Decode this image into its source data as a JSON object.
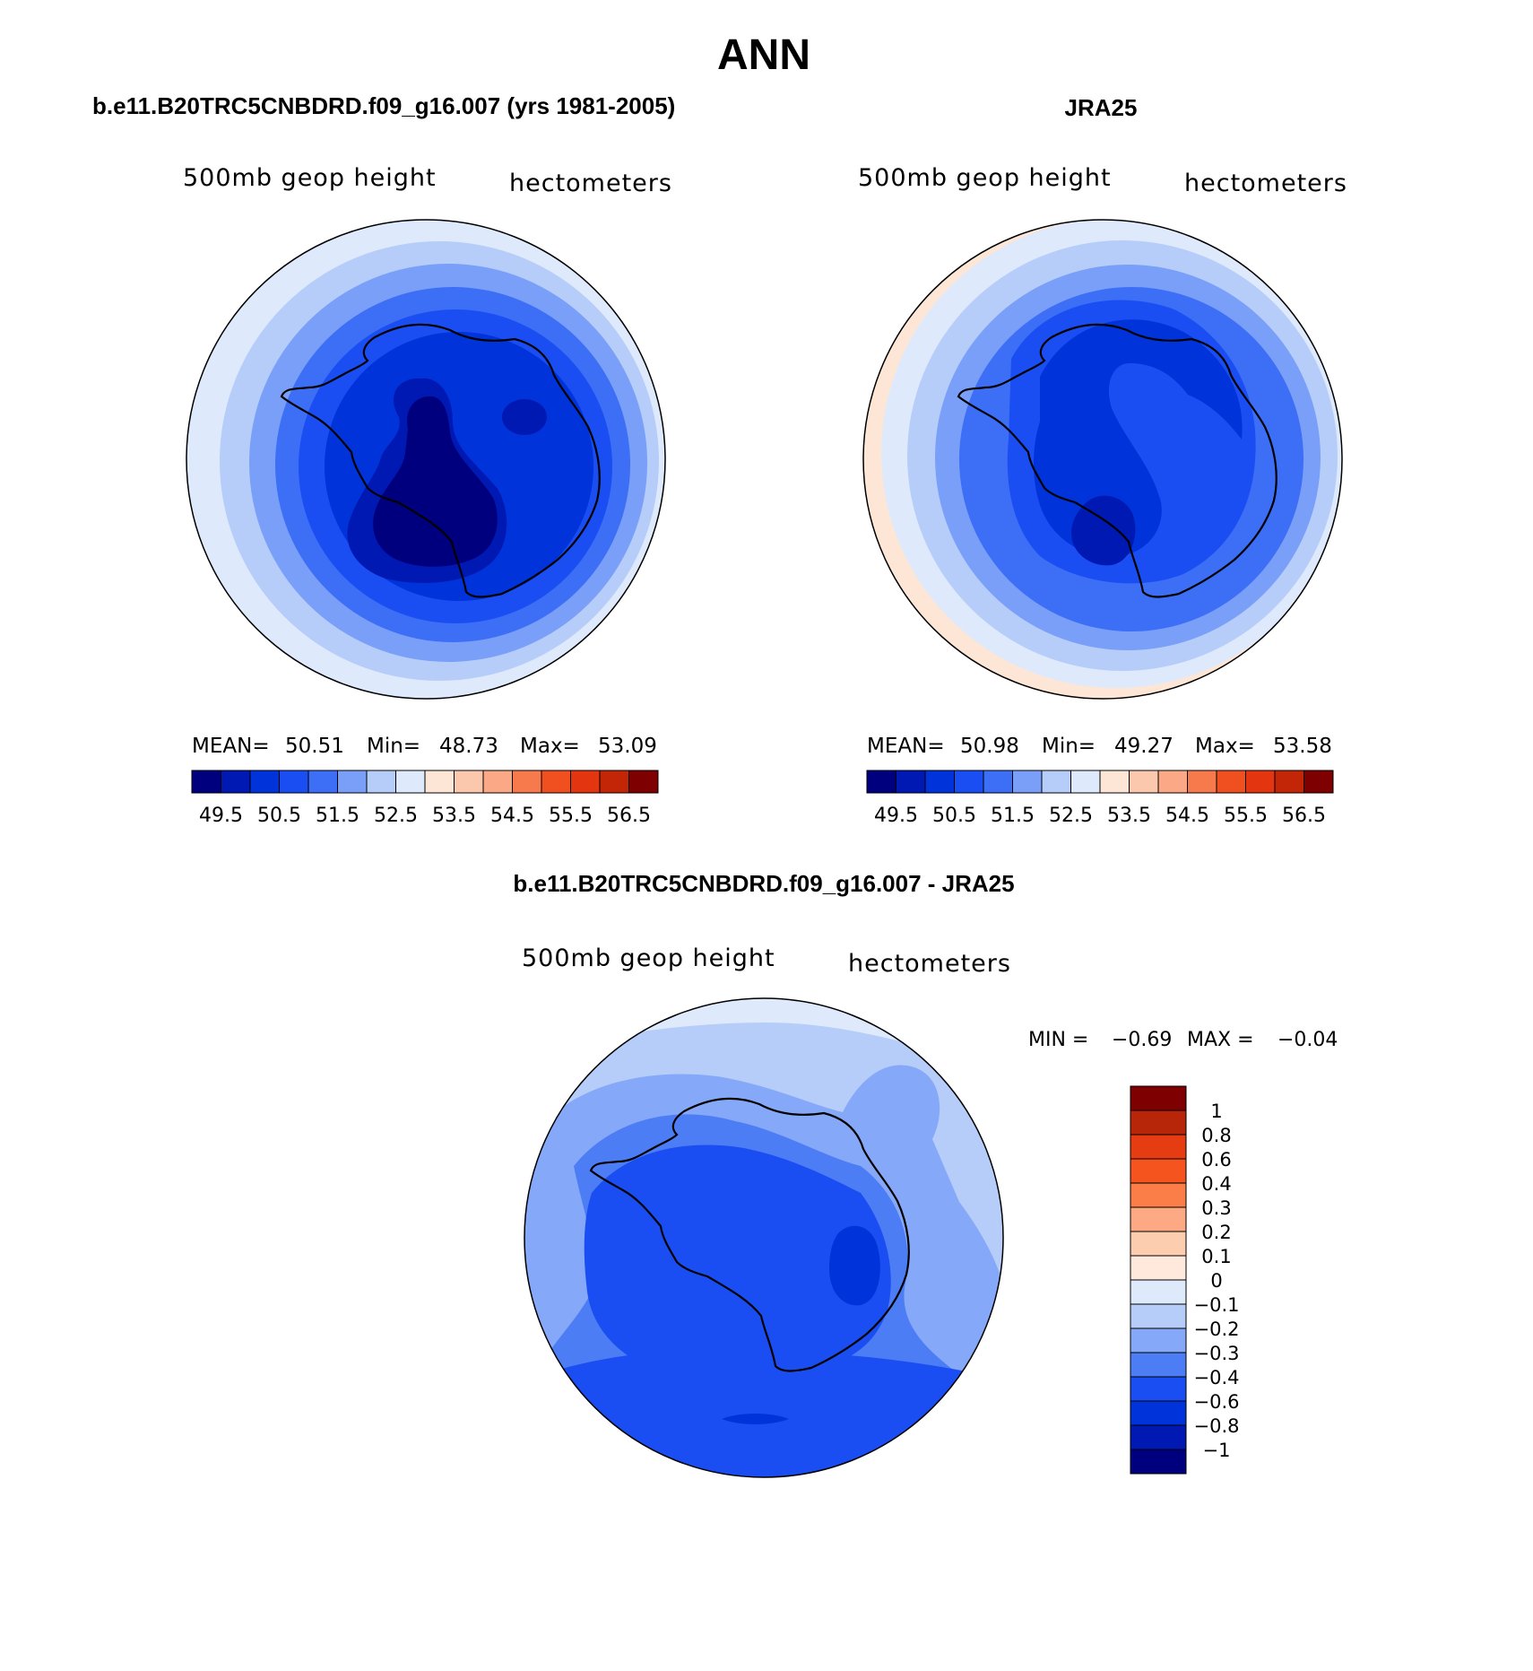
{
  "figure": {
    "title": "ANN",
    "panel1_title": "b.e11.B20TRC5CNBDRD.f09_g16.007 (yrs 1981-2005)",
    "panel2_title": "JRA25",
    "diff_title": "b.e11.B20TRC5CNBDRD.f09_g16.007 - JRA25",
    "colors": {
      "seq": [
        "#00007f",
        "#0019b3",
        "#0033d9",
        "#1a4ef2",
        "#3d6ef6",
        "#7a9ff8",
        "#b6cdfa",
        "#deeafc",
        "#fde6d6",
        "#fcc8ad",
        "#faa886",
        "#f77a4c",
        "#f0501f",
        "#e33510",
        "#c22607",
        "#7f0000"
      ],
      "diff": [
        "#7f0000",
        "#b8260a",
        "#e63c12",
        "#f5541f",
        "#fb7d48",
        "#fdaa84",
        "#fdcdb0",
        "#fee9dc",
        "#deeafc",
        "#b6cdfa",
        "#86a8f8",
        "#4d7df5",
        "#1a4ef2",
        "#0033d9",
        "#0019b3",
        "#00007f"
      ]
    }
  },
  "panels": [
    {
      "name": "model",
      "variable": "500mb geop height",
      "units": "hectometers",
      "stats": {
        "mean_label": "MEAN=",
        "mean": "50.51",
        "min_label": "Min=",
        "min": "48.73",
        "max_label": "Max=",
        "max": "53.09"
      },
      "colorbar_labels": [
        "49.5",
        "50.5",
        "51.5",
        "52.5",
        "53.5",
        "54.5",
        "55.5",
        "56.5"
      ]
    },
    {
      "name": "obs",
      "variable": "500mb geop height",
      "units": "hectometers",
      "stats": {
        "mean_label": "MEAN=",
        "mean": "50.98",
        "min_label": "Min=",
        "min": "49.27",
        "max_label": "Max=",
        "max": "53.58"
      },
      "colorbar_labels": [
        "49.5",
        "50.5",
        "51.5",
        "52.5",
        "53.5",
        "54.5",
        "55.5",
        "56.5"
      ]
    }
  ],
  "diff_panel": {
    "variable": "500mb geop height",
    "units": "hectometers",
    "min_label": "MIN =",
    "min": "−0.69",
    "max_label": "MAX =",
    "max": "−0.04",
    "colorbar_labels": [
      "1",
      "0.8",
      "0.6",
      "0.4",
      "0.3",
      "0.2",
      "0.1",
      "0",
      "−0.1",
      "−0.2",
      "−0.3",
      "−0.4",
      "−0.6",
      "−0.8",
      "−1"
    ]
  },
  "chart_data": [
    {
      "type": "contour-map",
      "projection": "south polar stereographic",
      "title": "b.e11.B20TRC5CNBDRD.f09_g16.007 (yrs 1981-2005)",
      "variable": "500mb geop height",
      "units": "hectometers",
      "mean": 50.51,
      "min": 48.73,
      "max": 53.09,
      "contour_levels": [
        49.5,
        50,
        50.5,
        51,
        51.5,
        52,
        52.5,
        53,
        53.5,
        54,
        54.5,
        55,
        55.5,
        56,
        56.5
      ]
    },
    {
      "type": "contour-map",
      "projection": "south polar stereographic",
      "title": "JRA25",
      "variable": "500mb geop height",
      "units": "hectometers",
      "mean": 50.98,
      "min": 49.27,
      "max": 53.58,
      "contour_levels": [
        49.5,
        50,
        50.5,
        51,
        51.5,
        52,
        52.5,
        53,
        53.5,
        54,
        54.5,
        55,
        55.5,
        56,
        56.5
      ]
    },
    {
      "type": "contour-map",
      "projection": "south polar stereographic",
      "title": "b.e11.B20TRC5CNBDRD.f09_g16.007 - JRA25",
      "variable": "500mb geop height",
      "units": "hectometers",
      "min": -0.69,
      "max": -0.04,
      "contour_levels": [
        -1,
        -0.8,
        -0.6,
        -0.4,
        -0.3,
        -0.2,
        -0.1,
        0,
        0.1,
        0.2,
        0.3,
        0.4,
        0.6,
        0.8,
        1
      ]
    }
  ]
}
